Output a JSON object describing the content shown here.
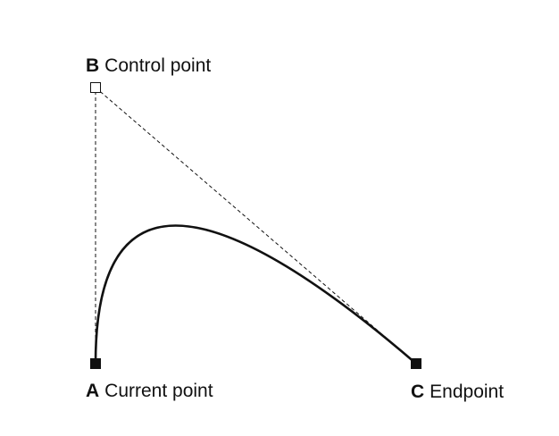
{
  "points": {
    "b": {
      "letter": "B",
      "text": "Control point"
    },
    "a": {
      "letter": "A",
      "text": "Current point"
    },
    "c": {
      "letter": "C",
      "text": "Endpoint"
    }
  },
  "colors": {
    "stroke": "#111111",
    "background": "#ffffff"
  }
}
